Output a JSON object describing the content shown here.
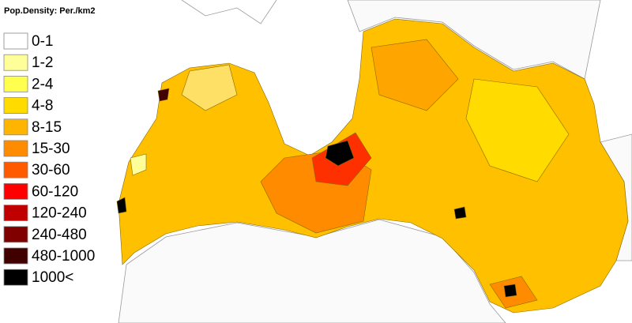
{
  "legend": {
    "title": "Pop.Density: Per./km2",
    "items": [
      {
        "label": "0-1",
        "color": "#ffffff"
      },
      {
        "label": "1-2",
        "color": "#ffff99"
      },
      {
        "label": "2-4",
        "color": "#ffff4d"
      },
      {
        "label": "4-8",
        "color": "#ffdb00"
      },
      {
        "label": "8-15",
        "color": "#ffb400"
      },
      {
        "label": "15-30",
        "color": "#ff8c00"
      },
      {
        "label": "30-60",
        "color": "#ff5a00"
      },
      {
        "label": "60-120",
        "color": "#ff0000"
      },
      {
        "label": "120-240",
        "color": "#c00000"
      },
      {
        "label": "240-480",
        "color": "#800000"
      },
      {
        "label": "480-1000",
        "color": "#400000"
      },
      {
        "label": "1000<",
        "color": "#000000"
      }
    ]
  }
}
